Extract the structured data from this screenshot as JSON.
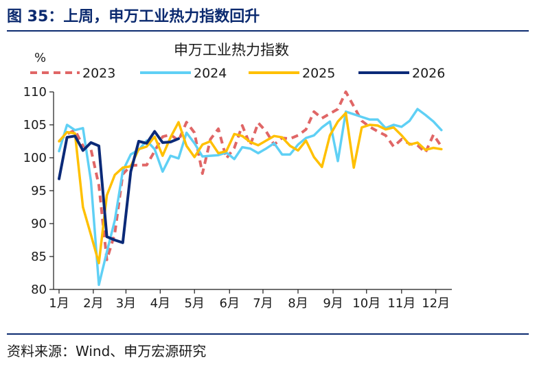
{
  "figure": {
    "title": "图 35：上周，申万工业热力指数回升",
    "source": "资料来源：Wind、申万宏源研究"
  },
  "chart_data": {
    "type": "line",
    "title": "申万工业热力指数",
    "ylabel": "%",
    "xlabel": "",
    "ylim": [
      80,
      110
    ],
    "yticks": [
      80,
      85,
      90,
      95,
      100,
      105,
      110
    ],
    "x_unit": "week of year (1–52)",
    "x_tick_labels": [
      {
        "label": "1月",
        "x": 1
      },
      {
        "label": "2月",
        "x": 5.3
      },
      {
        "label": "3月",
        "x": 9.4
      },
      {
        "label": "4月",
        "x": 13.7
      },
      {
        "label": "5月",
        "x": 18
      },
      {
        "label": "6月",
        "x": 22.4
      },
      {
        "label": "7月",
        "x": 26.6
      },
      {
        "label": "8月",
        "x": 31
      },
      {
        "label": "9月",
        "x": 35.4
      },
      {
        "label": "10月",
        "x": 39.6
      },
      {
        "label": "11月",
        "x": 44
      },
      {
        "label": "12月",
        "x": 48.3
      }
    ],
    "grid": false,
    "legend_position": "top",
    "series": [
      {
        "name": "2023",
        "color": "#e06666",
        "style": "dashed",
        "values": [
          102.5,
          103.6,
          104.2,
          101.8,
          101.3,
          95.8,
          84.5,
          88.5,
          97.5,
          98.8,
          98.9,
          98.9,
          101.0,
          103.2,
          103.5,
          102.6,
          105.4,
          103.8,
          97.6,
          102.8,
          104.4,
          99.9,
          101.5,
          104.9,
          101.9,
          105.3,
          104.0,
          102.0,
          103.0,
          102.9,
          103.4,
          104.3,
          107.0,
          106.0,
          106.7,
          107.4,
          110.0,
          107.8,
          105.6,
          104.7,
          104.0,
          103.4,
          101.7,
          102.8,
          102.1,
          101.9,
          100.8,
          103.5,
          101.7
        ]
      },
      {
        "name": "2024",
        "color": "#5fd0f5",
        "style": "solid",
        "values": [
          101.0,
          105.0,
          104.2,
          104.5,
          96.5,
          80.7,
          85.7,
          90.5,
          98.0,
          100.5,
          101.2,
          102.6,
          101.3,
          97.9,
          100.3,
          99.9,
          103.8,
          102.2,
          100.2,
          100.3,
          100.4,
          100.8,
          99.8,
          101.6,
          101.4,
          100.7,
          101.4,
          102.2,
          100.5,
          100.5,
          102.0,
          103.0,
          103.4,
          104.6,
          105.5,
          99.5,
          107.0,
          106.6,
          106.2,
          105.8,
          105.8,
          104.5,
          105.0,
          104.7,
          105.6,
          107.4,
          106.5,
          105.5,
          104.2
        ]
      },
      {
        "name": "2025",
        "color": "#ffc000",
        "style": "solid",
        "values": [
          102.5,
          103.9,
          103.7,
          92.5,
          88.3,
          84.0,
          94.3,
          97.4,
          98.5,
          98.7,
          101.3,
          101.7,
          103.2,
          100.3,
          103.1,
          105.4,
          101.8,
          100.1,
          102.0,
          102.5,
          100.7,
          101.0,
          103.6,
          103.3,
          102.4,
          101.9,
          102.6,
          103.3,
          103.1,
          101.8,
          101.1,
          102.6,
          100.1,
          98.6,
          103.4,
          105.5,
          106.8,
          98.5,
          104.6,
          105.0,
          104.9,
          104.3,
          104.6,
          103.4,
          102.0,
          102.3,
          101.2,
          101.5,
          101.3
        ]
      },
      {
        "name": "2026",
        "color": "#0b2a78",
        "style": "solid",
        "values": [
          96.8,
          103.1,
          103.3,
          101.1,
          102.3,
          101.8,
          88.0,
          87.5,
          87.1,
          97.9,
          102.5,
          102.2,
          104.0,
          102.3,
          102.4,
          102.9
        ]
      }
    ]
  }
}
